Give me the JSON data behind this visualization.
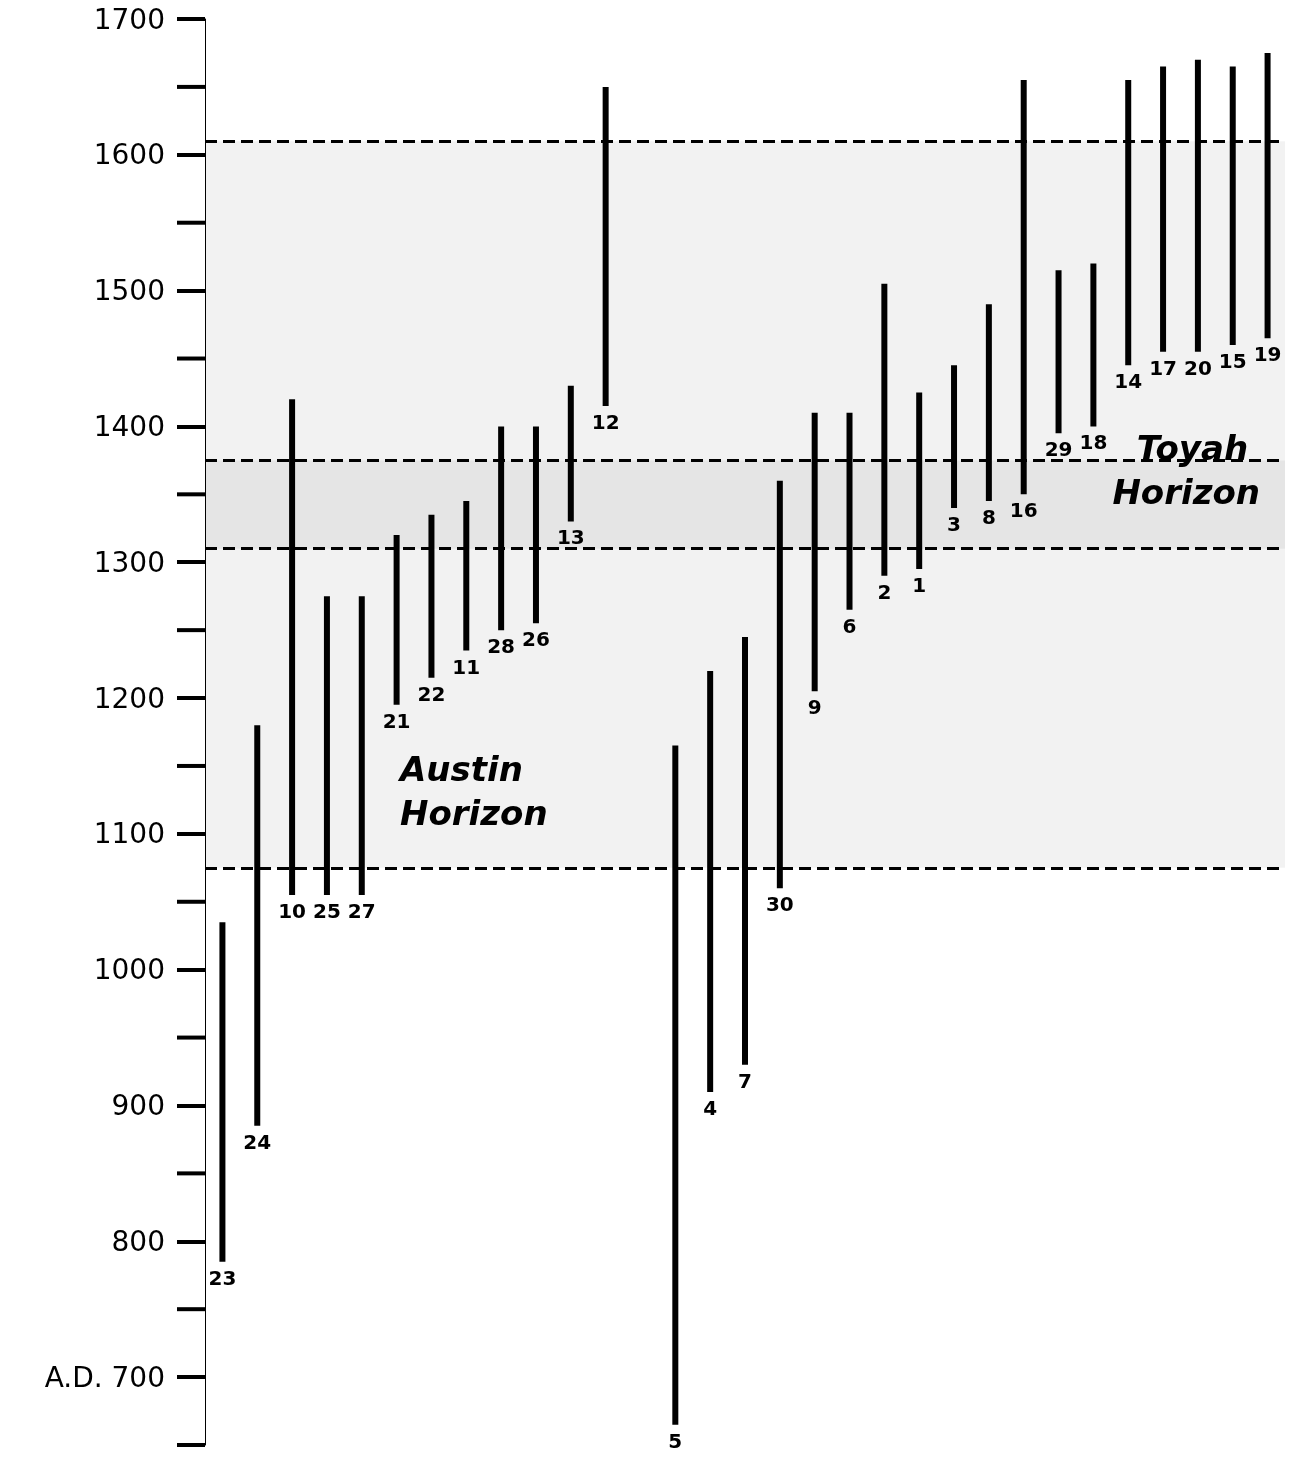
{
  "chart_data": {
    "type": "bar",
    "categories": [
      "23",
      "24",
      "10",
      "25",
      "27",
      "21",
      "22",
      "11",
      "28",
      "26",
      "13",
      "12",
      null,
      "5",
      "4",
      "7",
      "30",
      "9",
      "6",
      "2",
      "1",
      "3",
      "8",
      "16",
      "29",
      "18",
      "14",
      "17",
      "20",
      "15",
      "19"
    ],
    "base": [
      785,
      885,
      1055,
      1055,
      1055,
      1195,
      1215,
      1235,
      1250,
      1255,
      1330,
      1415,
      null,
      665,
      910,
      930,
      1060,
      1205,
      1265,
      1290,
      1295,
      1340,
      1345,
      1350,
      1395,
      1400,
      1445,
      1455,
      1455,
      1460,
      1465
    ],
    "values": [
      250,
      295,
      365,
      220,
      220,
      125,
      120,
      110,
      150,
      145,
      100,
      235,
      null,
      500,
      310,
      315,
      300,
      205,
      145,
      215,
      130,
      105,
      145,
      305,
      120,
      120,
      210,
      210,
      215,
      205,
      210
    ],
    "color": "#000000",
    "ylim": [
      650,
      1700
    ],
    "yticks": [
      {
        "value": 700,
        "label": "A.D. 700"
      },
      800,
      900,
      1000,
      1100,
      1200,
      1300,
      1400,
      1500,
      1600,
      1700
    ],
    "bands": [
      {
        "axis": "y",
        "from": 1075,
        "to": 1375,
        "label": "Austin Horizon"
      },
      {
        "axis": "y",
        "from": 1310,
        "to": 1610,
        "label": "Toyah Horizon"
      }
    ]
  }
}
